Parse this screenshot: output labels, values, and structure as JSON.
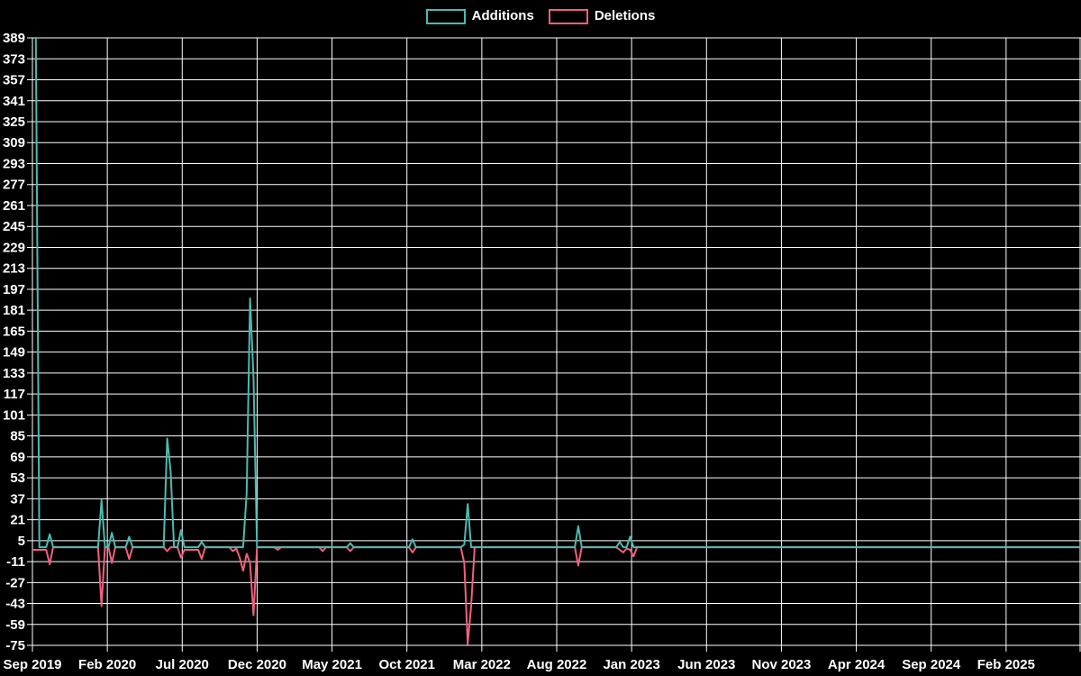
{
  "colors": {
    "background": "#000000",
    "grid": "#ffffff",
    "text": "#ffffff",
    "additions": "#49bcb2",
    "deletions": "#f0607e"
  },
  "legend": {
    "items": [
      {
        "id": "additions",
        "label": "Additions",
        "color": "#49bcb2"
      },
      {
        "id": "deletions",
        "label": "Deletions",
        "color": "#f0607e"
      }
    ]
  },
  "chart_data": {
    "type": "line",
    "grid": true,
    "legend_position": "top-center",
    "background": "#000000",
    "ylim": [
      -75,
      389
    ],
    "y_tick_step": 16,
    "y_ticks": [
      389,
      373,
      357,
      341,
      325,
      309,
      293,
      277,
      261,
      245,
      229,
      213,
      197,
      181,
      165,
      149,
      133,
      117,
      101,
      85,
      69,
      53,
      37,
      21,
      5,
      -11,
      -27,
      -43,
      -59,
      -75
    ],
    "x_tick_labels": [
      "Sep 2019",
      "Feb 2020",
      "Jul 2020",
      "Dec 2020",
      "May 2021",
      "Oct 2021",
      "Mar 2022",
      "Aug 2022",
      "Jan 2023",
      "Jun 2023",
      "Nov 2023",
      "Apr 2024",
      "Sep 2024",
      "Feb 2025"
    ],
    "x_unit": "weeks since first data point (Sep 2019), 5 months per labeled tick",
    "series": [
      {
        "name": "Additions",
        "color": "#49bcb2",
        "points": [
          [
            1,
            389
          ],
          [
            2,
            0
          ],
          [
            4,
            0
          ],
          [
            5,
            10
          ],
          [
            6,
            0
          ],
          [
            19,
            0
          ],
          [
            20,
            36
          ],
          [
            21,
            0
          ],
          [
            22,
            0
          ],
          [
            23,
            11
          ],
          [
            24,
            0
          ],
          [
            27,
            0
          ],
          [
            28,
            8
          ],
          [
            29,
            0
          ],
          [
            38,
            0
          ],
          [
            39,
            83
          ],
          [
            40,
            58
          ],
          [
            41,
            0
          ],
          [
            42,
            0
          ],
          [
            43,
            13
          ],
          [
            44,
            0
          ],
          [
            48,
            0
          ],
          [
            49,
            4
          ],
          [
            50,
            0
          ],
          [
            61,
            0
          ],
          [
            62,
            41
          ],
          [
            63,
            190
          ],
          [
            64,
            130
          ],
          [
            65,
            0
          ],
          [
            91,
            0
          ],
          [
            92,
            3
          ],
          [
            93,
            0
          ],
          [
            109,
            0
          ],
          [
            110,
            6
          ],
          [
            111,
            0
          ],
          [
            124,
            0
          ],
          [
            125,
            2
          ],
          [
            126,
            33
          ],
          [
            127,
            0
          ],
          [
            157,
            0
          ],
          [
            158,
            16
          ],
          [
            159,
            0
          ],
          [
            169,
            0
          ],
          [
            170,
            4
          ],
          [
            171,
            0
          ],
          [
            172,
            0
          ],
          [
            173,
            8
          ],
          [
            174,
            0
          ],
          [
            303,
            0
          ]
        ]
      },
      {
        "name": "Deletions",
        "color": "#f0607e",
        "points": [
          [
            0,
            -2
          ],
          [
            2,
            -2
          ],
          [
            4,
            -2
          ],
          [
            5,
            -13
          ],
          [
            6,
            0
          ],
          [
            19,
            0
          ],
          [
            20,
            -45
          ],
          [
            21,
            0
          ],
          [
            22,
            0
          ],
          [
            23,
            -12
          ],
          [
            24,
            0
          ],
          [
            27,
            0
          ],
          [
            28,
            -9
          ],
          [
            29,
            0
          ],
          [
            38,
            0
          ],
          [
            39,
            -3
          ],
          [
            40,
            0
          ],
          [
            42,
            0
          ],
          [
            43,
            -8
          ],
          [
            44,
            -2
          ],
          [
            46,
            -2
          ],
          [
            48,
            -2
          ],
          [
            49,
            -9
          ],
          [
            50,
            0
          ],
          [
            57,
            0
          ],
          [
            58,
            -3
          ],
          [
            59,
            -1
          ],
          [
            60,
            -8
          ],
          [
            61,
            -18
          ],
          [
            62,
            -5
          ],
          [
            63,
            -12
          ],
          [
            64,
            -52
          ],
          [
            65,
            0
          ],
          [
            70,
            0
          ],
          [
            71,
            -2
          ],
          [
            72,
            0
          ],
          [
            83,
            0
          ],
          [
            84,
            -3
          ],
          [
            85,
            0
          ],
          [
            91,
            0
          ],
          [
            92,
            -3
          ],
          [
            93,
            0
          ],
          [
            109,
            0
          ],
          [
            110,
            -4
          ],
          [
            111,
            0
          ],
          [
            124,
            0
          ],
          [
            125,
            -12
          ],
          [
            126,
            -74
          ],
          [
            127,
            -45
          ],
          [
            128,
            0
          ],
          [
            157,
            0
          ],
          [
            158,
            -14
          ],
          [
            159,
            0
          ],
          [
            169,
            0
          ],
          [
            170,
            -2
          ],
          [
            171,
            -4
          ],
          [
            172,
            -1
          ],
          [
            173,
            -2
          ],
          [
            174,
            -7
          ],
          [
            175,
            0
          ],
          [
            303,
            0
          ]
        ]
      }
    ]
  }
}
